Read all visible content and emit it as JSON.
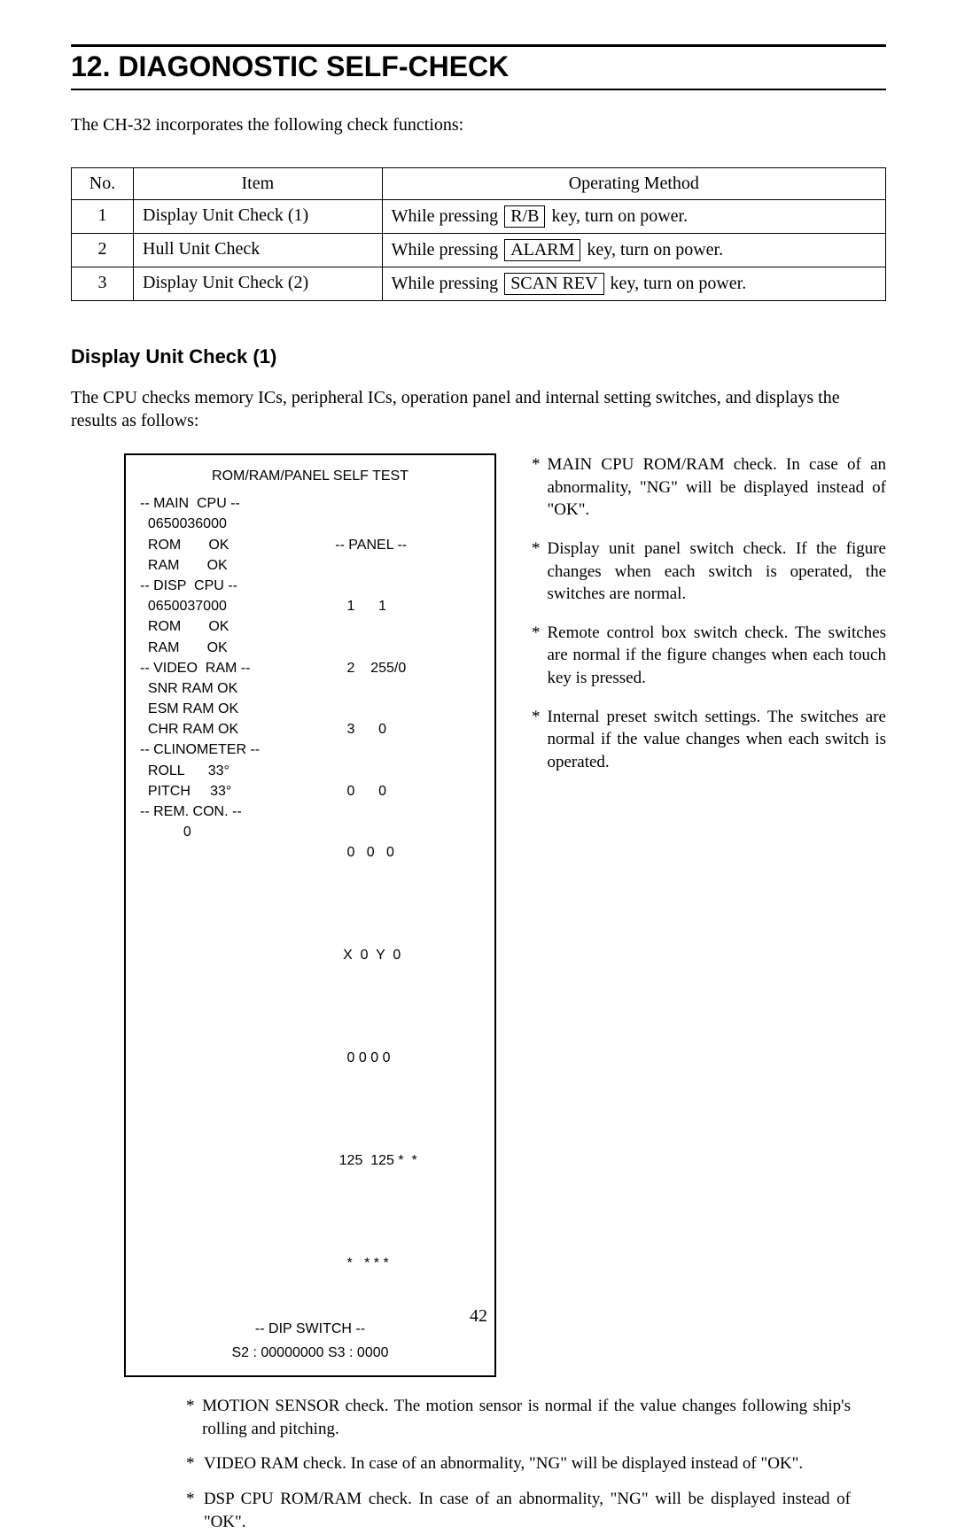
{
  "heading": "12. DIAGONOSTIC SELF-CHECK",
  "intro": "The CH-32 incorporates the following check functions:",
  "table": {
    "headers": {
      "no": "No.",
      "item": "Item",
      "method": "Operating Method"
    },
    "rows": [
      {
        "no": "1",
        "item": "Display Unit Check (1)",
        "method_pre": "While pressing ",
        "key": "R/B",
        "method_post": " key, turn on power."
      },
      {
        "no": "2",
        "item": "Hull Unit Check",
        "method_pre": "While pressing ",
        "key": "ALARM",
        "method_post": " key, turn on power."
      },
      {
        "no": "3",
        "item": "Display Unit Check (2)",
        "method_pre": "While pressing ",
        "key": "SCAN REV",
        "method_post": " key, turn on power."
      }
    ]
  },
  "section1": {
    "title": "Display Unit Check (1)",
    "para": "The CPU checks memory ICs, peripheral ICs, operation panel and internal setting switches, and displays the results as follows:"
  },
  "screen": {
    "title": "ROM/RAM/PANEL SELF TEST",
    "left": [
      "-- MAIN  CPU --",
      "  0650036000",
      "  ROM       OK",
      "  RAM       OK",
      "-- DISP  CPU --",
      "  0650037000",
      "  ROM       OK",
      "  RAM       OK",
      "-- VIDEO  RAM --",
      "  SNR RAM OK",
      "  ESM RAM OK",
      "  CHR RAM OK",
      "-- CLINOMETER --",
      "  ROLL      33°",
      "  PITCH     33°",
      "-- REM. CON. --",
      "           0"
    ],
    "right_header": "-- PANEL --",
    "right": [
      "   1      1",
      "   2    255/0",
      "   3      0",
      "   0      0",
      "   0   0   0",
      "",
      "  X  0  Y  0",
      "",
      "   0 0 0 0",
      "",
      " 125  125 *  *",
      "",
      "   *   * * *"
    ],
    "bottom1": "-- DIP  SWITCH --",
    "bottom2": "S2 : 00000000  S3 : 0000"
  },
  "right_notes": [
    "MAIN CPU ROM/RAM check. In case of an abnormality, \"NG\" will be displayed instead of \"OK\".",
    "Display unit panel switch check. If the figure changes when each switch is operated, the switches are normal.",
    "Remote control box switch check. The switches are normal if the figure changes when each touch key is pressed.",
    "Internal preset switch settings. The switches are normal if the value changes when each switch is operated."
  ],
  "lower_notes": [
    "MOTION SENSOR check. The motion sensor is normal if the value changes following ship's rolling and pitching.",
    "VIDEO RAM check. In case of an abnormality, \"NG\" will be displayed instead of \"OK\".",
    "DSP CPU ROM/RAM check. In case of an abnormality, \"NG\" will be displayed instead of \"OK\"."
  ],
  "page": "42",
  "colors": {
    "text": "#000000",
    "bg": "#ffffff"
  }
}
